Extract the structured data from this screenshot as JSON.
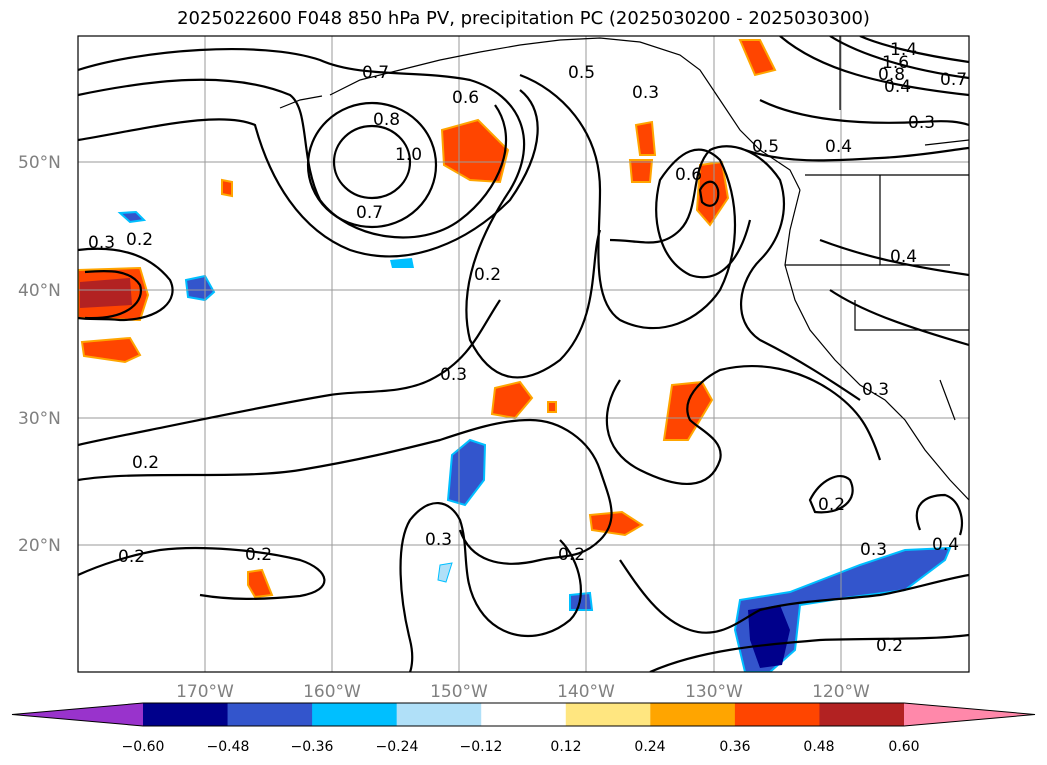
{
  "title": "2025022600 F048 850 hPa PV, precipitation PC (2025030200 - 2025030300)",
  "map": {
    "lat_labels": [
      "50°N",
      "40°N",
      "30°N",
      "20°N"
    ],
    "lon_labels": [
      "170°W",
      "160°W",
      "150°W",
      "140°W",
      "130°W",
      "120°W"
    ],
    "contour_labels": [
      "0.7",
      "0.6",
      "0.5",
      "0.3",
      "1.4",
      "1.6",
      "0.8",
      "0.7",
      "0.4",
      "0.3",
      "0.8",
      "1.0",
      "0.7",
      "0.5",
      "0.4",
      "0.6",
      "0.3",
      "0.2",
      "0.2",
      "0.4",
      "0.3",
      "0.3",
      "0.2",
      "0.2",
      "0.3",
      "0.2",
      "0.2",
      "0.2",
      "0.3",
      "0.4",
      "0.2",
      "0.2"
    ]
  },
  "colorbar": {
    "tick_labels": [
      "−0.60",
      "−0.48",
      "−0.36",
      "−0.24",
      "−0.12",
      "0.12",
      "0.24",
      "0.36",
      "0.48",
      "0.60"
    ],
    "colors": [
      "#9933cc",
      "#00008b",
      "#3355cc",
      "#00bfff",
      "#b0e0f8",
      "#ffffff",
      "#ffe680",
      "#ffa500",
      "#ff4500",
      "#b22222",
      "#ff88aa"
    ]
  }
}
